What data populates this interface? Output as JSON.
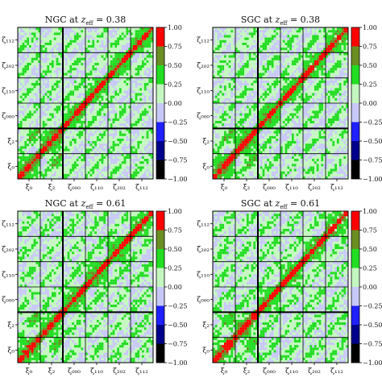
{
  "chart_data": {
    "type": "heatmap",
    "colorbar": {
      "vmin": -1.0,
      "vmax": 1.0,
      "ticks": [
        "1.00",
        "0.75",
        "0.50",
        "0.25",
        "0.00",
        "−0.25",
        "−0.50",
        "−0.75",
        "−1.00"
      ],
      "bins": [
        {
          "from": -1.0,
          "to": -0.75,
          "color": "#000000"
        },
        {
          "from": -0.75,
          "to": -0.5,
          "color": "#00008b"
        },
        {
          "from": -0.5,
          "to": -0.25,
          "color": "#2020ff"
        },
        {
          "from": -0.25,
          "to": 0.0,
          "color": "#c8c8f8"
        },
        {
          "from": 0.0,
          "to": 0.25,
          "color": "#c4f7c0"
        },
        {
          "from": 0.25,
          "to": 0.5,
          "color": "#22dd22"
        },
        {
          "from": 0.5,
          "to": 0.75,
          "color": "#6b8e23"
        },
        {
          "from": 0.75,
          "to": 1.0,
          "color": "#ff0000"
        }
      ]
    },
    "blocks": [
      "ξ₀",
      "ξ₂",
      "ζ₀₀₀",
      "ζ₁₁₀",
      "ζ₂₀₂",
      "ζ₁₁₂"
    ],
    "x_tick_labels": [
      "ξ₀",
      "ξ₂",
      "ζ₀₀₀",
      "ζ₁₁₀",
      "ζ₂₀₂",
      "ζ₁₁₂"
    ],
    "y_tick_labels": [
      "ζ₁₁₂",
      "ζ₂₀₂",
      "ζ₁₁₀",
      "ζ₀₀₀",
      "ξ₂",
      "ξ₀"
    ],
    "bins_per_block": 10,
    "panels": [
      {
        "id": "ngc-038",
        "title_prefix": "NGC at ",
        "z_symbol": "z",
        "z_sub": "eff",
        "z_value": " = 0.38",
        "noise": 0.85
      },
      {
        "id": "sgc-038",
        "title_prefix": "SGC at ",
        "z_symbol": "z",
        "z_sub": "eff",
        "z_value": " = 0.38",
        "noise": 0.95
      },
      {
        "id": "ngc-061",
        "title_prefix": "NGC at ",
        "z_symbol": "z",
        "z_sub": "eff",
        "z_value": " = 0.61",
        "noise": 1.0
      },
      {
        "id": "sgc-061",
        "title_prefix": "SGC at ",
        "z_symbol": "z",
        "z_sub": "eff",
        "z_value": " = 0.61",
        "noise": 1.1
      }
    ]
  }
}
